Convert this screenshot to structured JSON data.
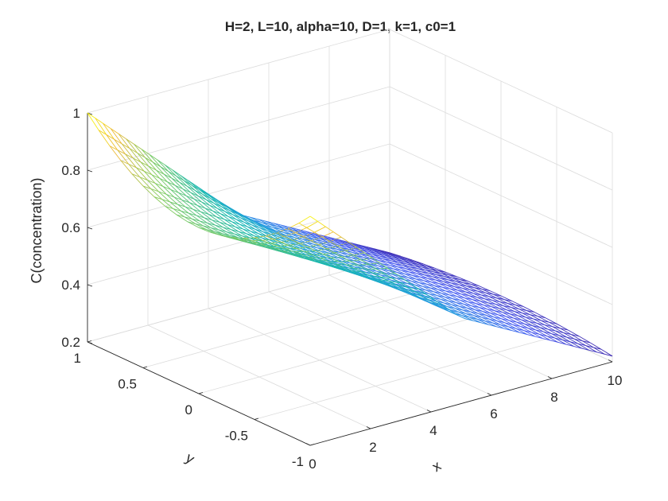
{
  "chart_data": {
    "type": "surface-mesh",
    "title": "H=2, L=10, alpha=10, D=1, k=1, c0=1",
    "xlabel": "x",
    "ylabel": "y",
    "zlabel": "C(concentration)",
    "xlim": [
      0,
      10
    ],
    "ylim": [
      -1,
      1
    ],
    "zlim": [
      0.2,
      1
    ],
    "xticks": [
      0,
      2,
      4,
      6,
      8,
      10
    ],
    "yticks": [
      -1,
      -0.5,
      0,
      0.5,
      1
    ],
    "zticks": [
      0.2,
      0.4,
      0.6,
      0.8,
      1
    ],
    "xtick_labels": [
      "0",
      "2",
      "4",
      "6",
      "8",
      "10"
    ],
    "ytick_labels": [
      "-1",
      "-0.5",
      "0",
      "0.5",
      "1"
    ],
    "ztick_labels": [
      "0.2",
      "0.4",
      "0.6",
      "0.8",
      "1"
    ],
    "grid": true,
    "colormap": "parula",
    "colors": {
      "low": "#3e26a8",
      "mid": "#16b8b0",
      "high": "#f9fb0e"
    },
    "surface": {
      "x_points": 40,
      "y_points": 21,
      "corner_values": [
        {
          "x": 0,
          "y": -1,
          "z": 1
        },
        {
          "x": 0,
          "y": 1,
          "z": 1
        },
        {
          "x": 10,
          "y": -1,
          "z": 0.22
        },
        {
          "x": 10,
          "y": 1,
          "z": 0.22
        }
      ],
      "center_line": [
        {
          "x": 0,
          "z": 0.78
        },
        {
          "x": 5,
          "z": 0.5
        },
        {
          "x": 10,
          "z": 0.25
        }
      ],
      "edge_line": [
        {
          "x": 0,
          "z": 1
        },
        {
          "x": 5,
          "z": 0.5
        },
        {
          "x": 10,
          "z": 0.22
        }
      ]
    }
  }
}
